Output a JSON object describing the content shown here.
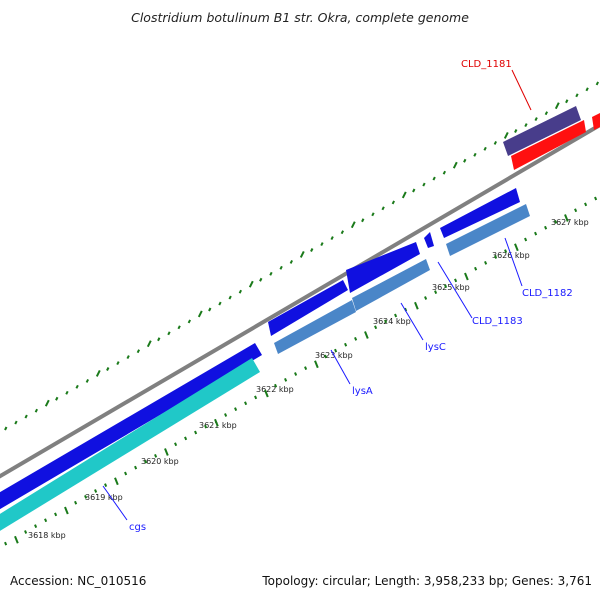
{
  "title": "Clostridium botulinum B1 str. Okra, complete genome",
  "footer": {
    "accession": "Accession: NC_010516",
    "summary": "Topology: circular; Length: 3,958,233 bp; Genes: 3,761"
  },
  "colors": {
    "backbone": "#808080",
    "tick": "#1a7a1a",
    "dot": "#1a7a1a",
    "gene_blue": "#1010e0",
    "gene_steel": "#4a86c8",
    "gene_cyan": "#20c8c8",
    "gene_navy": "#483d8b",
    "gene_red": "#ff1010",
    "label_blue": "#1a1aff",
    "label_red": "#e00000"
  },
  "ticks": [
    {
      "label": "3618 kbp"
    },
    {
      "label": "3619 kbp"
    },
    {
      "label": "3620 kbp"
    },
    {
      "label": "3621 kbp"
    },
    {
      "label": "3622 kbp"
    },
    {
      "label": "3623 kbp"
    },
    {
      "label": "3624 kbp"
    },
    {
      "label": "3625 kbp"
    },
    {
      "label": "3626 kbp"
    },
    {
      "label": "3627 kbp"
    }
  ],
  "genes": [
    {
      "name": "cgs",
      "color": "label_blue"
    },
    {
      "name": "lysA",
      "color": "label_blue"
    },
    {
      "name": "lysC",
      "color": "label_blue"
    },
    {
      "name": "CLD_1183",
      "color": "label_blue"
    },
    {
      "name": "CLD_1182",
      "color": "label_blue"
    },
    {
      "name": "CLD_1181",
      "color": "label_red"
    }
  ]
}
